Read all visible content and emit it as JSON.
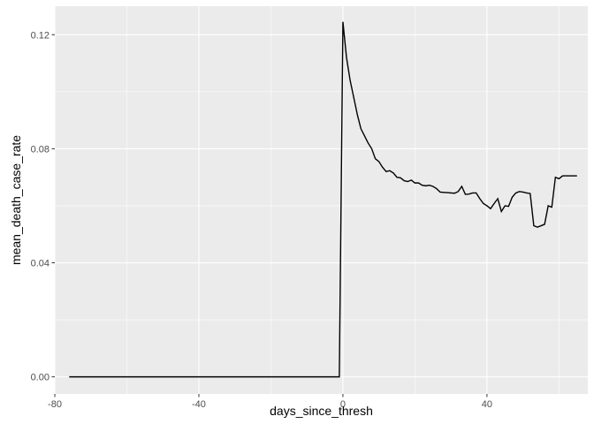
{
  "chart_data": {
    "type": "line",
    "title": "",
    "xlabel": "days_since_thresh",
    "ylabel": "mean_death_case_rate",
    "xlim": [
      -80,
      68
    ],
    "ylim": [
      -0.006,
      0.13
    ],
    "x_ticks": [
      -80,
      -40,
      0,
      40
    ],
    "x_tick_labels": [
      "-80",
      "-40",
      "0",
      "40"
    ],
    "y_ticks": [
      0.0,
      0.04,
      0.08,
      0.12
    ],
    "y_tick_labels": [
      "0.00",
      "0.04",
      "0.08",
      "0.12"
    ],
    "grid": true,
    "colors": {
      "panel": "#ebebeb",
      "grid_major": "#ffffff",
      "line": "#000000"
    },
    "series": [
      {
        "x": [
          -76,
          -1,
          0,
          1,
          2,
          3,
          4,
          5,
          6,
          7,
          8,
          9,
          10,
          11,
          12,
          13,
          14,
          15,
          16,
          17,
          18,
          19,
          20,
          21,
          22,
          23,
          24,
          25,
          26,
          27,
          28,
          29,
          30,
          31,
          32,
          33,
          34,
          35,
          36,
          37,
          38,
          39,
          40,
          41,
          42,
          43,
          44,
          45,
          46,
          47,
          48,
          49,
          50,
          51,
          52,
          53,
          54,
          55,
          56,
          57,
          58,
          59,
          60,
          61,
          62,
          63,
          64,
          65
        ],
        "y": [
          0.0,
          0.0,
          0.1245,
          0.112,
          0.104,
          0.098,
          0.092,
          0.087,
          0.0845,
          0.082,
          0.08,
          0.0765,
          0.0755,
          0.0735,
          0.072,
          0.0723,
          0.0715,
          0.07,
          0.0698,
          0.0688,
          0.0685,
          0.069,
          0.068,
          0.068,
          0.0672,
          0.067,
          0.0672,
          0.0668,
          0.066,
          0.0648,
          0.0647,
          0.0646,
          0.0645,
          0.0644,
          0.065,
          0.0668,
          0.064,
          0.0641,
          0.0645,
          0.0645,
          0.0625,
          0.0608,
          0.06,
          0.059,
          0.0608,
          0.0625,
          0.058,
          0.06,
          0.0598,
          0.063,
          0.0645,
          0.065,
          0.0648,
          0.0645,
          0.0643,
          0.053,
          0.0525,
          0.053,
          0.0535,
          0.06,
          0.0595,
          0.07,
          0.0695,
          0.0705,
          0.0705,
          0.0705,
          0.0705,
          0.0705
        ]
      }
    ]
  }
}
